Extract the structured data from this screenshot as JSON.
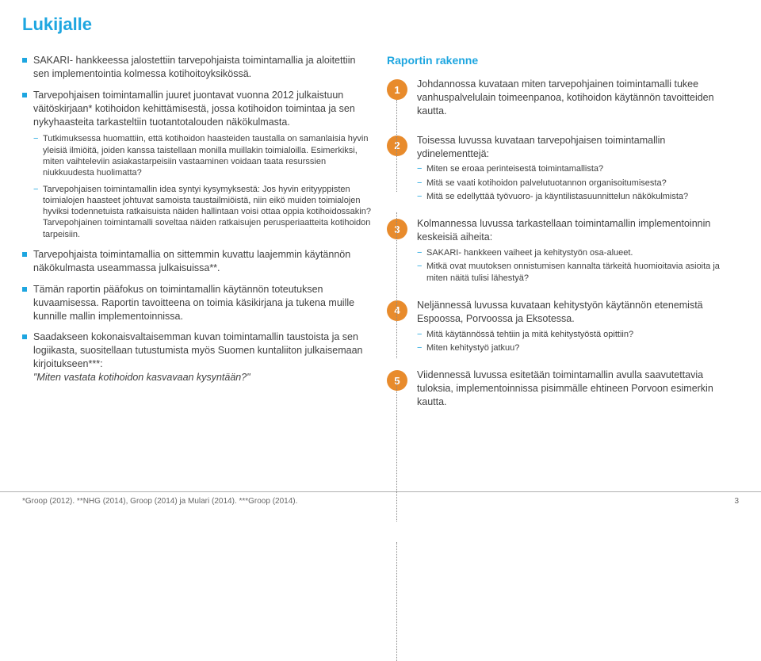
{
  "colors": {
    "accent": "#1ea6e0",
    "orange": "#e88b2c",
    "text": "#404040",
    "rule": "#b0b0b0"
  },
  "title": "Lukijalle",
  "left": {
    "items": [
      {
        "text": "SAKARI- hankkeessa jalostettiin tarvepohjaista toimintamallia ja aloitettiin sen implementointia kolmessa kotihoitoyksikössä.",
        "subs": []
      },
      {
        "text": "Tarvepohjaisen toimintamallin juuret juontavat vuonna 2012 julkaistuun väitöskirjaan* kotihoidon kehittämisestä, jossa kotihoidon toimintaa ja sen nykyhaasteita tarkasteltiin tuotantotalouden näkökulmasta.",
        "subs": [
          "Tutkimuksessa huomattiin, että kotihoidon haasteiden taustalla on samanlaisia hyvin yleisiä ilmiöitä, joiden kanssa taistellaan monilla muillakin toimialoilla. Esimerkiksi, miten vaihteleviin asiakastarpeisiin vastaaminen voidaan taata resurssien niukkuudesta huolimatta?",
          "Tarvepohjaisen toimintamallin idea syntyi kysymyksestä: Jos hyvin erityyppisten toimialojen haasteet johtuvat samoista taustailmiöistä, niin eikö muiden toimialojen hyviksi todennetuista ratkaisuista näiden hallintaan voisi ottaa oppia kotihoidossakin? Tarvepohjainen toimintamalli soveltaa näiden ratkaisujen perusperiaatteita kotihoidon tarpeisiin."
        ]
      },
      {
        "text": "Tarvepohjaista toimintamallia on sittemmin kuvattu laajemmin käytännön näkökulmasta useammassa julkaisuissa**.",
        "subs": []
      },
      {
        "text": "Tämän raportin pääfokus on toimintamallin käytännön toteutuksen kuvaamisessa. Raportin tavoitteena on toimia käsikirjana ja tukena muille kunnille mallin implementoinnissa.",
        "subs": []
      },
      {
        "text": "Saadakseen kokonaisvaltaisemman kuvan toimintamallin taustoista ja sen logiikasta, suositellaan tutustumista myös Suomen kuntaliiton julkaisemaan kirjoitukseen***:",
        "tail_italic": "\"Miten vastata kotihoidon kasvavaan kysyntään?\"",
        "subs": []
      }
    ]
  },
  "right": {
    "heading": "Raportin rakenne",
    "sections": [
      {
        "num": "1",
        "lead": "Johdannossa kuvataan miten tarvepohjainen toimintamalli tukee vanhuspalvelulain toimeenpanoa, kotihoidon käytännön tavoitteiden kautta.",
        "subs": []
      },
      {
        "num": "2",
        "lead": "Toisessa luvussa kuvataan tarvepohjaisen toimintamallin ydinelementtejä:",
        "subs": [
          "Miten se eroaa perinteisestä toimintamallista?",
          "Mitä se vaati kotihoidon palvelutuotannon organisoitumisesta?",
          "Mitä se edellyttää työvuoro- ja käyntilistasuunnittelun näkökulmista?"
        ]
      },
      {
        "num": "3",
        "lead": "Kolmannessa luvussa tarkastellaan toimintamallin implementoinnin keskeisiä aiheita:",
        "subs": [
          "SAKARI- hankkeen vaiheet ja kehitystyön osa-alueet.",
          "Mitkä ovat muutoksen onnistumisen kannalta tärkeitä huomioitavia asioita ja miten näitä tulisi lähestyä?"
        ]
      },
      {
        "num": "4",
        "lead": "Neljännessä luvussa kuvataan kehitystyön käytännön etenemistä Espoossa, Porvoossa ja Eksotessa.",
        "subs": [
          "Mitä käytännössä tehtiin ja mitä kehitystyöstä opittiin?",
          "Miten kehitystyö jatkuu?"
        ]
      },
      {
        "num": "5",
        "lead": "Viidennessä luvussa esitetään toimintamallin avulla saavutettavia tuloksia, implementoinnissa pisimmälle ehtineen Porvoon esimerkin kautta.",
        "subs": []
      }
    ]
  },
  "footnote": "*Groop (2012). **NHG (2014), Groop (2014) ja Mulari (2014). ***Groop (2014).",
  "pagenum": "3"
}
